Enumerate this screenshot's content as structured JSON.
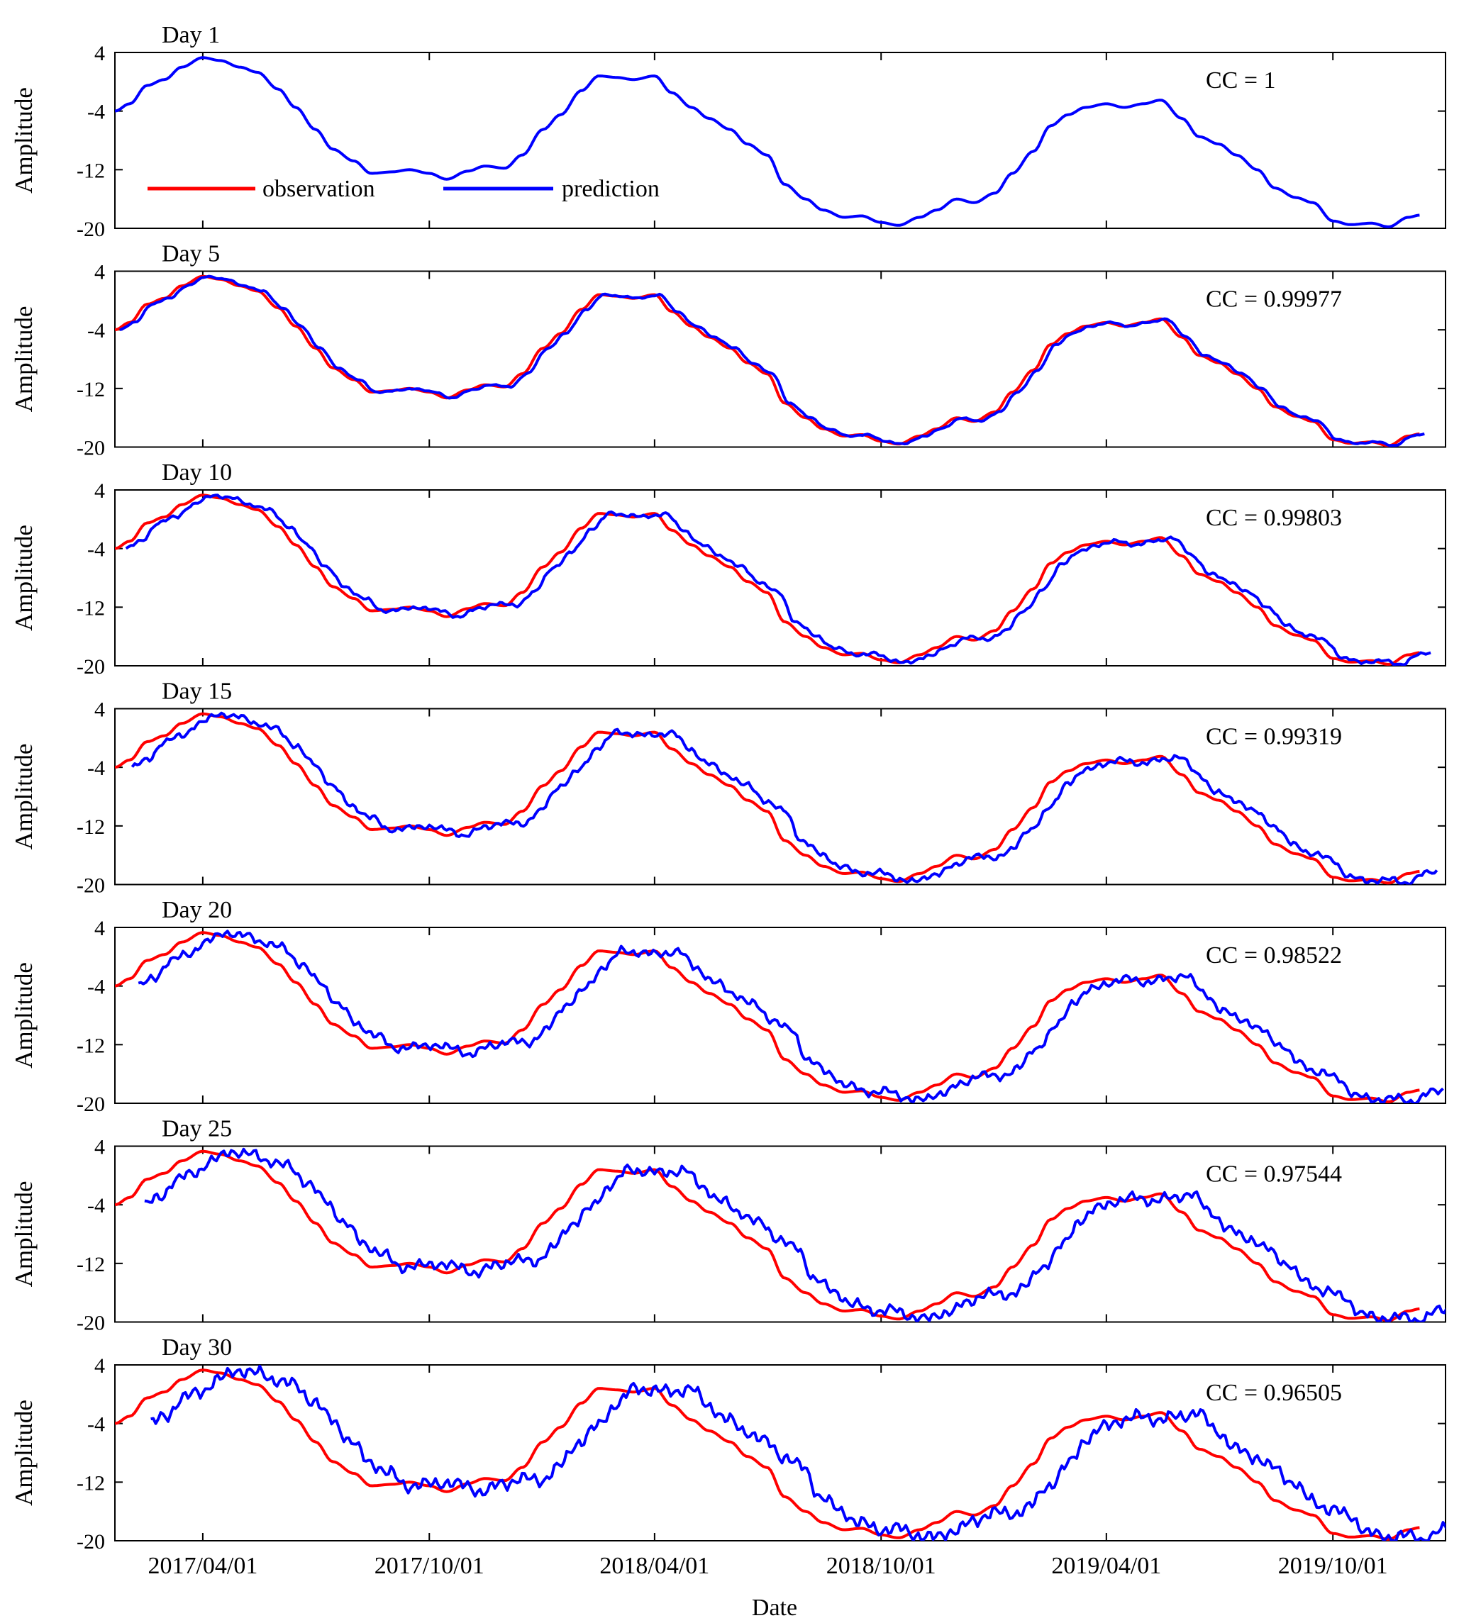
{
  "chart_data": {
    "type": "line",
    "xlabel": "Date",
    "ylabel": "Amplitude",
    "x_ticks": [
      "2017/04/01",
      "2017/10/01",
      "2018/04/01",
      "2018/10/01",
      "2019/04/01",
      "2019/10/01"
    ],
    "xlim": [
      "2017-01-20",
      "2019-12-31"
    ],
    "ylim": [
      -20,
      4
    ],
    "y_ticks": [
      4,
      -4,
      -12,
      -20
    ],
    "y_tick_labels": [
      "4",
      "-4",
      "-12",
      "-20"
    ],
    "legend": {
      "placement": "upper-left",
      "entries": [
        "observation",
        "prediction"
      ]
    },
    "colors": {
      "observation": "#ff0000",
      "prediction": "#0000ff"
    },
    "observation": {
      "x": [
        "2017-01-20",
        "2017-02-01",
        "2017-02-15",
        "2017-03-01",
        "2017-03-15",
        "2017-04-01",
        "2017-04-15",
        "2017-05-01",
        "2017-05-15",
        "2017-06-01",
        "2017-06-15",
        "2017-07-01",
        "2017-07-15",
        "2017-08-01",
        "2017-08-15",
        "2017-09-01",
        "2017-09-15",
        "2017-10-01",
        "2017-10-15",
        "2017-11-01",
        "2017-11-15",
        "2017-12-01",
        "2017-12-15",
        "2018-01-01",
        "2018-01-15",
        "2018-02-01",
        "2018-02-15",
        "2018-03-01",
        "2018-03-15",
        "2018-04-01",
        "2018-04-15",
        "2018-05-01",
        "2018-05-15",
        "2018-06-01",
        "2018-06-15",
        "2018-07-01",
        "2018-07-15",
        "2018-08-01",
        "2018-08-15",
        "2018-09-01",
        "2018-09-15",
        "2018-10-01",
        "2018-10-15",
        "2018-11-01",
        "2018-11-15",
        "2018-12-01",
        "2018-12-15",
        "2019-01-01",
        "2019-01-15",
        "2019-02-01",
        "2019-02-15",
        "2019-03-01",
        "2019-03-15",
        "2019-04-01",
        "2019-04-15",
        "2019-05-01",
        "2019-05-15",
        "2019-06-01",
        "2019-06-15",
        "2019-07-01",
        "2019-07-15",
        "2019-08-01",
        "2019-08-15",
        "2019-09-01",
        "2019-09-15",
        "2019-10-01",
        "2019-10-15",
        "2019-11-01",
        "2019-11-15",
        "2019-12-01",
        "2019-12-10"
      ],
      "y": [
        -4.0,
        -3.0,
        -0.5,
        0.3,
        2.0,
        3.3,
        2.9,
        2.0,
        1.3,
        -1.0,
        -3.5,
        -6.5,
        -9.2,
        -10.8,
        -12.5,
        -12.3,
        -12.0,
        -12.5,
        -13.3,
        -12.2,
        -11.5,
        -11.8,
        -10.0,
        -6.5,
        -4.5,
        -1.2,
        0.8,
        0.6,
        0.3,
        0.8,
        -1.5,
        -3.5,
        -5.0,
        -6.5,
        -8.5,
        -10.0,
        -14.0,
        -16.0,
        -17.5,
        -18.5,
        -18.3,
        -19.2,
        -19.6,
        -18.5,
        -17.5,
        -16.0,
        -16.5,
        -15.2,
        -12.5,
        -9.5,
        -6.0,
        -4.5,
        -3.5,
        -3.0,
        -3.5,
        -3.0,
        -2.5,
        -5.0,
        -7.5,
        -8.5,
        -10.0,
        -12.0,
        -14.5,
        -15.8,
        -16.5,
        -19.0,
        -19.5,
        -19.3,
        -19.8,
        -18.5,
        -18.2
      ]
    },
    "panels": [
      {
        "title": "Day 1",
        "cc_label": "CC = 1",
        "cc": 1,
        "lag_days": 0,
        "noise": 0.0,
        "show_observation": false,
        "show_legend": true
      },
      {
        "title": "Day 5",
        "cc_label": "CC = 0.99977",
        "cc": 0.99977,
        "lag_days": 4,
        "noise": 0.12,
        "show_observation": true,
        "show_legend": false
      },
      {
        "title": "Day 10",
        "cc_label": "CC = 0.99803",
        "cc": 0.99803,
        "lag_days": 9,
        "noise": 0.3,
        "show_observation": true,
        "show_legend": false
      },
      {
        "title": "Day 15",
        "cc_label": "CC = 0.99319",
        "cc": 0.99319,
        "lag_days": 14,
        "noise": 0.5,
        "show_observation": true,
        "show_legend": false
      },
      {
        "title": "Day 20",
        "cc_label": "CC = 0.98522",
        "cc": 0.98522,
        "lag_days": 19,
        "noise": 0.7,
        "show_observation": true,
        "show_legend": false
      },
      {
        "title": "Day 25",
        "cc_label": "CC = 0.97544",
        "cc": 0.97544,
        "lag_days": 24,
        "noise": 0.9,
        "show_observation": true,
        "show_legend": false
      },
      {
        "title": "Day 30",
        "cc_label": "CC = 0.96505",
        "cc": 0.96505,
        "lag_days": 29,
        "noise": 1.1,
        "show_observation": true,
        "show_legend": false
      }
    ]
  }
}
